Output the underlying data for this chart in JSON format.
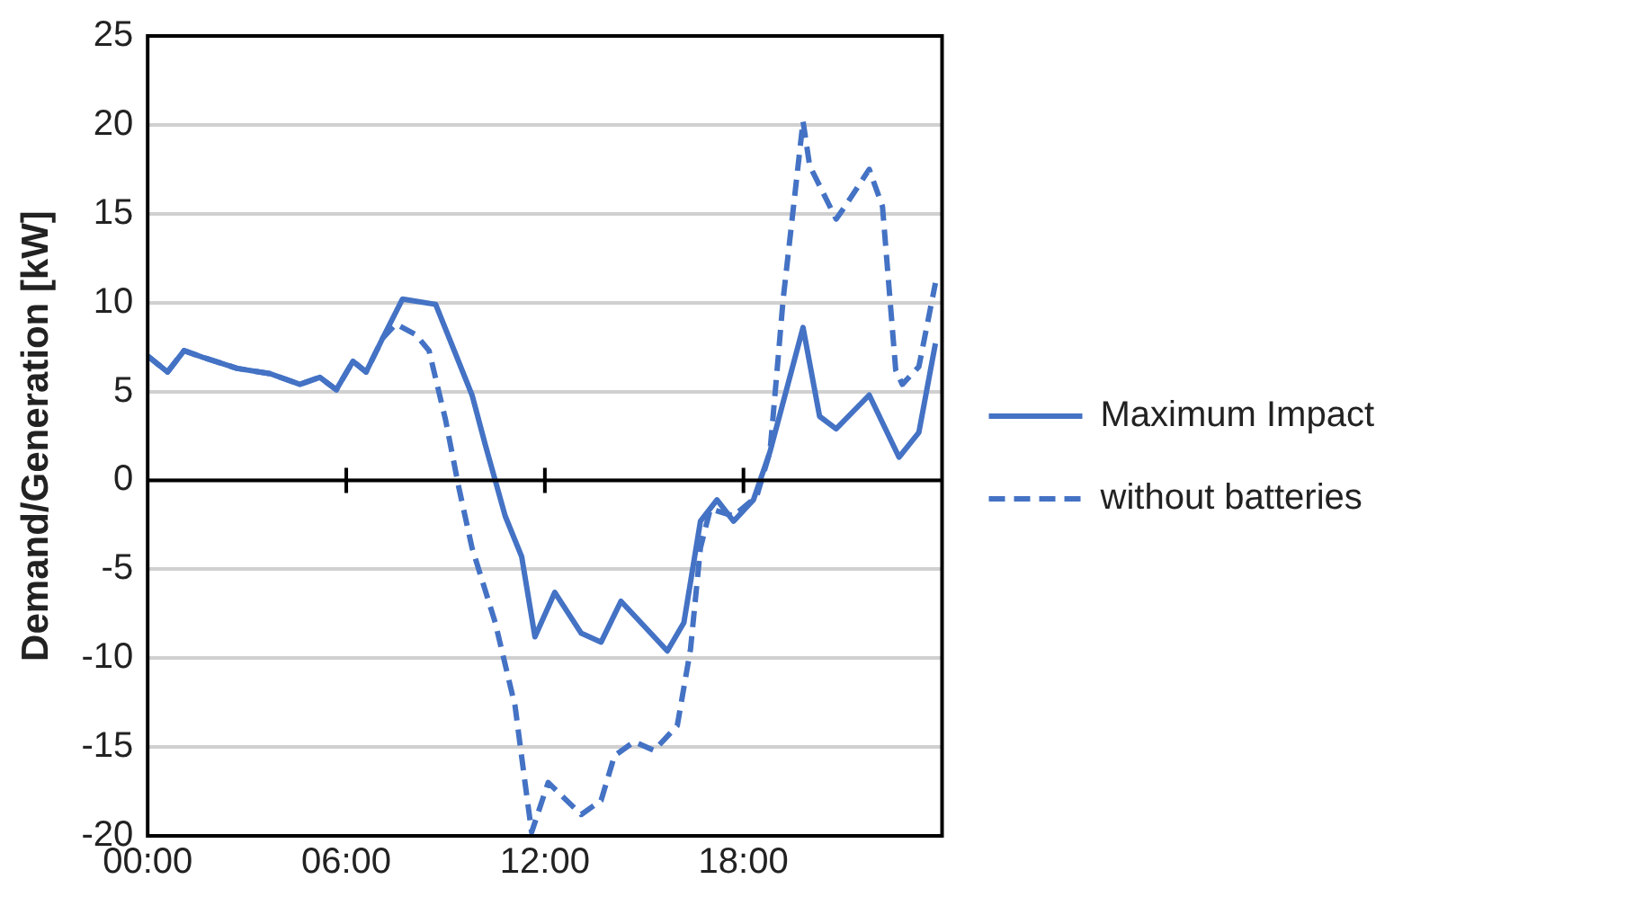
{
  "chart_data": {
    "type": "line",
    "ylabel": "Demand/Generation [kW]",
    "xlim": [
      0,
      24
    ],
    "xticks": [
      {
        "value": 0,
        "label": "00:00"
      },
      {
        "value": 6,
        "label": "06:00"
      },
      {
        "value": 12,
        "label": "12:00"
      },
      {
        "value": 18,
        "label": "18:00"
      }
    ],
    "ylim": [
      -20,
      25
    ],
    "yticks": [
      -20,
      -15,
      -10,
      -5,
      0,
      5,
      10,
      15,
      20,
      25
    ],
    "grid": "y",
    "legend": "right",
    "marker": "none",
    "series": [
      {
        "name": "Maximum Impact",
        "color": "#4472c4",
        "line_style": "solid",
        "x": [
          0.0,
          0.6,
          1.1,
          1.7,
          2.7,
          3.7,
          4.6,
          5.2,
          5.7,
          6.2,
          6.6,
          7.1,
          7.7,
          8.7,
          9.8,
          10.2,
          10.8,
          11.3,
          11.7,
          12.3,
          13.1,
          13.7,
          14.3,
          15.7,
          16.2,
          16.7,
          17.2,
          17.7,
          18.3,
          18.8,
          19.8,
          20.3,
          20.8,
          21.8,
          22.7,
          23.3,
          23.8
        ],
        "values": [
          7.0,
          6.1,
          7.3,
          6.9,
          6.3,
          6.0,
          5.4,
          5.8,
          5.1,
          6.7,
          6.1,
          8.0,
          10.2,
          9.9,
          4.8,
          2.0,
          -2.0,
          -4.3,
          -8.8,
          -6.3,
          -8.6,
          -9.1,
          -6.8,
          -9.6,
          -8.0,
          -2.3,
          -1.1,
          -2.3,
          -1.1,
          1.6,
          8.6,
          3.6,
          2.9,
          4.8,
          1.3,
          2.7,
          7.7
        ]
      },
      {
        "name": "without batteries",
        "color": "#4472c4",
        "line_style": "dashed",
        "x": [
          0.0,
          0.6,
          1.1,
          1.7,
          2.7,
          3.7,
          4.6,
          5.2,
          5.7,
          6.2,
          6.6,
          7.1,
          7.5,
          8.1,
          8.5,
          9.0,
          9.4,
          9.8,
          10.5,
          11.1,
          11.4,
          11.6,
          12.1,
          13.1,
          13.7,
          14.1,
          14.7,
          15.3,
          16.0,
          16.4,
          16.7,
          17.0,
          17.7,
          18.4,
          18.8,
          18.9,
          19.2,
          19.5,
          19.8,
          20.0,
          20.8,
          21.1,
          21.8,
          22.2,
          22.6,
          22.8,
          23.3,
          23.8
        ],
        "values": [
          7.0,
          6.1,
          7.3,
          6.9,
          6.3,
          6.0,
          5.4,
          5.8,
          5.1,
          6.7,
          6.1,
          8.0,
          8.8,
          8.2,
          7.3,
          3.4,
          -0.4,
          -3.8,
          -8.0,
          -12.7,
          -17.0,
          -19.8,
          -17.0,
          -18.8,
          -18.0,
          -15.5,
          -14.7,
          -15.2,
          -13.8,
          -9.5,
          -3.8,
          -1.6,
          -2.0,
          -0.9,
          1.6,
          3.7,
          10.2,
          15.2,
          20.2,
          17.7,
          14.7,
          15.5,
          17.5,
          15.4,
          6.2,
          5.4,
          6.4,
          11.1
        ]
      }
    ]
  }
}
